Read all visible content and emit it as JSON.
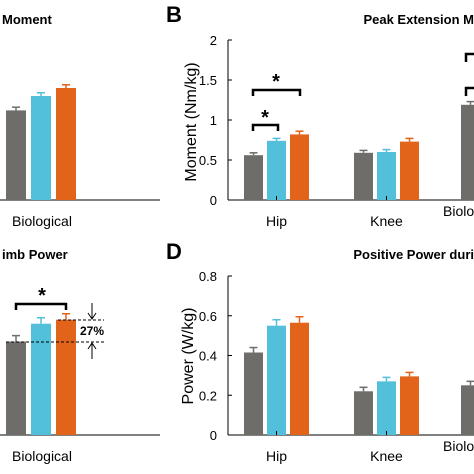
{
  "colors": {
    "gray": "#6e6d69",
    "blue": "#52bfdb",
    "orange": "#e2631a"
  },
  "chart_data": [
    {
      "type": "bar",
      "panel": "",
      "title": "Moment",
      "ylabel": "",
      "ylim": [
        0,
        2
      ],
      "categories": [
        "Biological"
      ],
      "series": [
        {
          "values": [
            1.12
          ],
          "errors": [
            0.04
          ]
        },
        {
          "values": [
            1.3
          ],
          "errors": [
            0.04
          ]
        },
        {
          "values": [
            1.4
          ],
          "errors": [
            0.04
          ]
        }
      ],
      "annotations": []
    },
    {
      "type": "bar",
      "panel": "B",
      "title": "Peak Extension M",
      "ylabel": "Moment (Nm/kg)",
      "ylim": [
        0,
        2
      ],
      "yticks": [
        "0",
        "0.5",
        "1",
        "1.5",
        "2"
      ],
      "categories": [
        "Hip",
        "Knee",
        "Biolo"
      ],
      "series": [
        {
          "values": [
            0.56,
            0.59,
            1.19
          ],
          "errors": [
            0.03,
            0.03,
            0.04
          ]
        },
        {
          "values": [
            0.74,
            0.6,
            null
          ],
          "errors": [
            0.03,
            0.03,
            null
          ]
        },
        {
          "values": [
            0.82,
            0.73,
            null
          ],
          "errors": [
            0.04,
            0.04,
            null
          ]
        }
      ],
      "annotations": [
        "*",
        "*"
      ]
    },
    {
      "type": "bar",
      "panel": "",
      "title": "imb Power",
      "ylabel": "",
      "ylim": [
        0,
        0.8
      ],
      "categories": [
        "Biological"
      ],
      "series": [
        {
          "values": [
            0.47
          ],
          "errors": [
            0.03
          ]
        },
        {
          "values": [
            0.56
          ],
          "errors": [
            0.03
          ]
        },
        {
          "values": [
            0.58
          ],
          "errors": [
            0.03
          ]
        }
      ],
      "annotations": [
        "*",
        "27%"
      ]
    },
    {
      "type": "bar",
      "panel": "D",
      "title": "Positive Power duri",
      "ylabel": "Power (W/kg)",
      "ylim": [
        0,
        0.8
      ],
      "yticks": [
        "0",
        "0.2",
        "0.4",
        "0.6",
        "0.8"
      ],
      "categories": [
        "Hip",
        "Knee",
        "Biolo"
      ],
      "series": [
        {
          "values": [
            0.415,
            0.22,
            0.25
          ],
          "errors": [
            0.025,
            0.02,
            0.02
          ]
        },
        {
          "values": [
            0.55,
            0.27,
            null
          ],
          "errors": [
            0.03,
            0.02,
            null
          ]
        },
        {
          "values": [
            0.565,
            0.295,
            null
          ],
          "errors": [
            0.03,
            0.02,
            null
          ]
        }
      ],
      "annotations": []
    }
  ]
}
